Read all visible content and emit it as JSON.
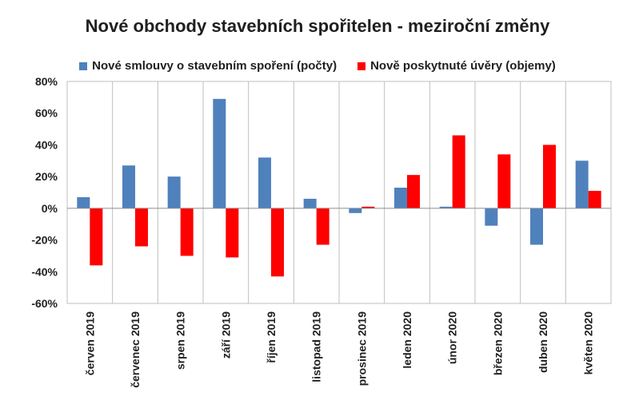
{
  "chart_data": {
    "type": "bar",
    "title": "Nové obchody stavebních spořitelen - meziroční změny",
    "categories": [
      "červen 2019",
      "červenec 2019",
      "srpen 2019",
      "září 2019",
      "říjen 2019",
      "listopad 2019",
      "prosinec 2019",
      "leden 2020",
      "únor 2020",
      "březen 2020",
      "duben 2020",
      "květen 2020"
    ],
    "series": [
      {
        "name": "Nové smlouvy o stavebním spoření (počty)",
        "color": "#4f81bd",
        "values": [
          7,
          27,
          20,
          69,
          32,
          6,
          -3,
          13,
          1,
          -11,
          -23,
          30
        ]
      },
      {
        "name": "Nově poskytnuté úvěry (objemy)",
        "color": "#ff0000",
        "values": [
          -36,
          -24,
          -30,
          -31,
          -43,
          -23,
          1,
          21,
          46,
          34,
          40,
          11
        ]
      }
    ],
    "ylim": [
      -60,
      80
    ],
    "yticks": [
      80,
      60,
      40,
      20,
      0,
      -20,
      -40,
      -60
    ],
    "ytick_labels": [
      "80%",
      "60%",
      "40%",
      "20%",
      "0%",
      "-20%",
      "-40%",
      "-60%"
    ],
    "grid": "vertical",
    "legend_position": "top"
  }
}
